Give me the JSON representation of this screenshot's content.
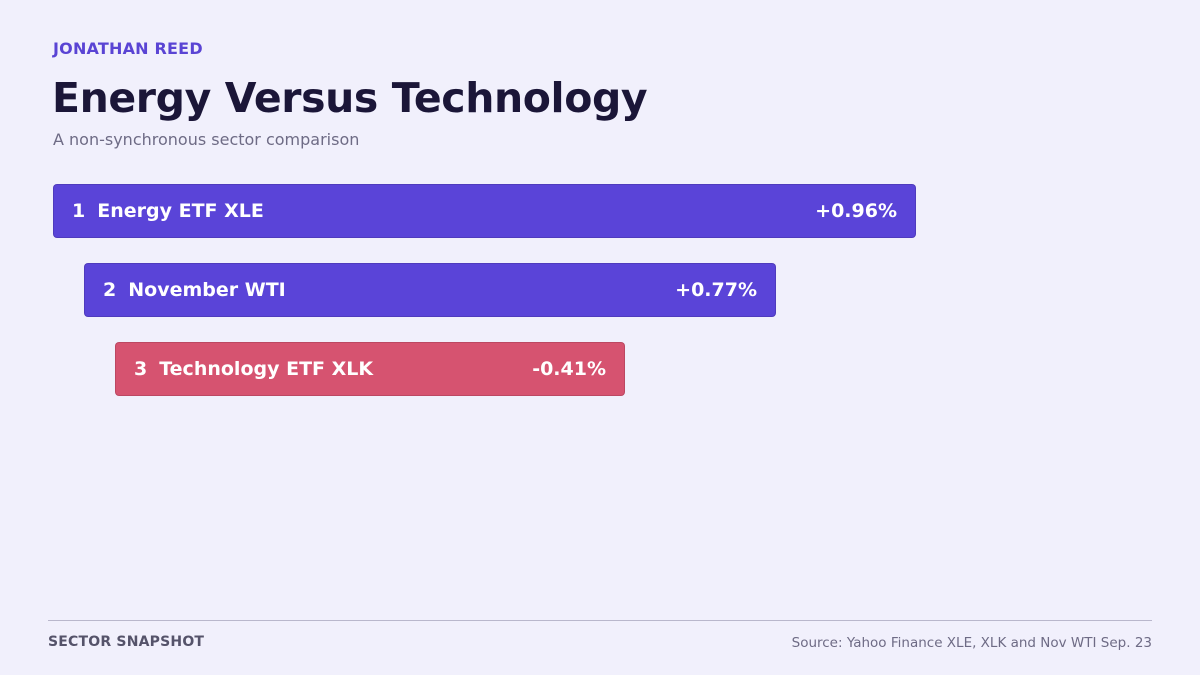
{
  "header": {
    "author": "JONATHAN REED",
    "title": "Energy Versus Technology",
    "subtitle": "A non-synchronous sector comparison"
  },
  "footer": {
    "left": "SECTOR SNAPSHOT",
    "source": "Source: Yahoo Finance XLE, XLK and Nov WTI Sep. 23"
  },
  "colors": {
    "positive": "#5a44d8",
    "negative": "#d65370"
  },
  "chart_data": {
    "type": "bar",
    "orientation": "horizontal",
    "categories": [
      "Energy ETF XLE",
      "November WTI",
      "Technology ETF XLK"
    ],
    "ranks": [
      "1",
      "2",
      "3"
    ],
    "values": [
      0.96,
      0.77,
      -0.41
    ],
    "value_labels": [
      "+0.96%",
      "+0.77%",
      "-0.41%"
    ],
    "unit": "%"
  }
}
